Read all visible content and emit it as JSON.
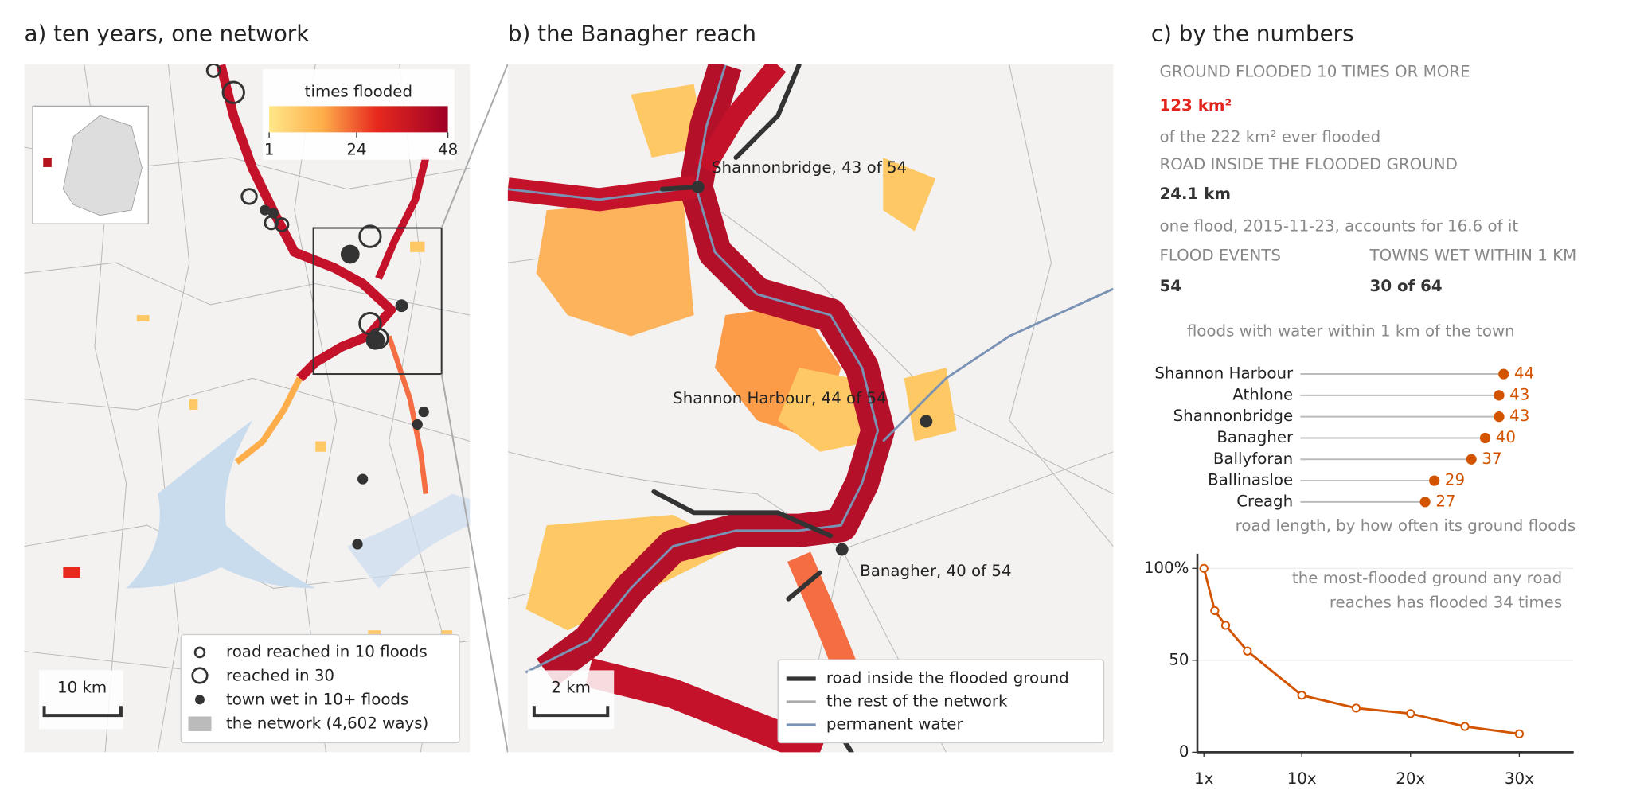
{
  "panels": {
    "a": {
      "title": "a) ten years, one network",
      "colorbar": {
        "title": "times flooded",
        "range": [
          1,
          48
        ],
        "ticks": [
          1,
          24,
          48
        ]
      },
      "scale": "10 km",
      "legend": [
        "road reached in 10 floods",
        "reached in 30",
        "town wet in 10+ floods",
        "the network (4,602 ways)"
      ]
    },
    "b": {
      "title": "b) the Banagher reach",
      "towns": [
        "Shannonbridge, 43 of 54",
        "Shannon Harbour, 44 of 54",
        "Banagher, 40 of 54"
      ],
      "scale": "2 km",
      "legend": [
        "road inside the flooded ground",
        "the rest of the network",
        "permanent water"
      ]
    },
    "c": {
      "title": "c) by the numbers",
      "stats": [
        {
          "label": "GROUND FLOODED 10 TIMES OR MORE",
          "value": "123 km²",
          "note": "of the 222 km² ever flooded"
        },
        {
          "label": "ROAD INSIDE THE FLOODED GROUND",
          "value": "24.1 km",
          "note": "one flood, 2015-11-23, accounts for 16.6 of it"
        },
        {
          "label": "FLOOD EVENTS",
          "value": "54"
        },
        {
          "label": "TOWNS WET WITHIN 1 KM",
          "value": "30 of 64"
        }
      ]
    }
  },
  "chart_data": [
    {
      "type": "lollipop",
      "title": "floods with water within 1 km of the town",
      "categories": [
        "Shannon Harbour",
        "Athlone",
        "Shannonbridge",
        "Banagher",
        "Ballyforan",
        "Ballinasloe",
        "Creagh"
      ],
      "values": [
        44,
        43,
        43,
        40,
        37,
        29,
        27
      ],
      "color": "#d35400",
      "xlim": [
        0,
        48
      ]
    },
    {
      "type": "line",
      "title": "road length, by how often its ground floods",
      "annotation": [
        "the most-flooded ground any road",
        "reaches has flooded 34 times"
      ],
      "x": [
        1,
        2,
        3,
        5,
        10,
        15,
        20,
        25,
        30
      ],
      "values": [
        100,
        77,
        69,
        55,
        31,
        24,
        21,
        14,
        10
      ],
      "color": "#d35400",
      "xlim": [
        0.4,
        35
      ],
      "ylim": [
        0,
        108
      ],
      "xticks": [
        {
          "value": 1,
          "label": "1x"
        },
        {
          "value": 10,
          "label": "10x"
        },
        {
          "value": 20,
          "label": "20x"
        },
        {
          "value": 30,
          "label": "30x"
        }
      ],
      "yticks": [
        0,
        50,
        {
          "value": 100,
          "label": "100%"
        }
      ],
      "grid": true
    }
  ]
}
